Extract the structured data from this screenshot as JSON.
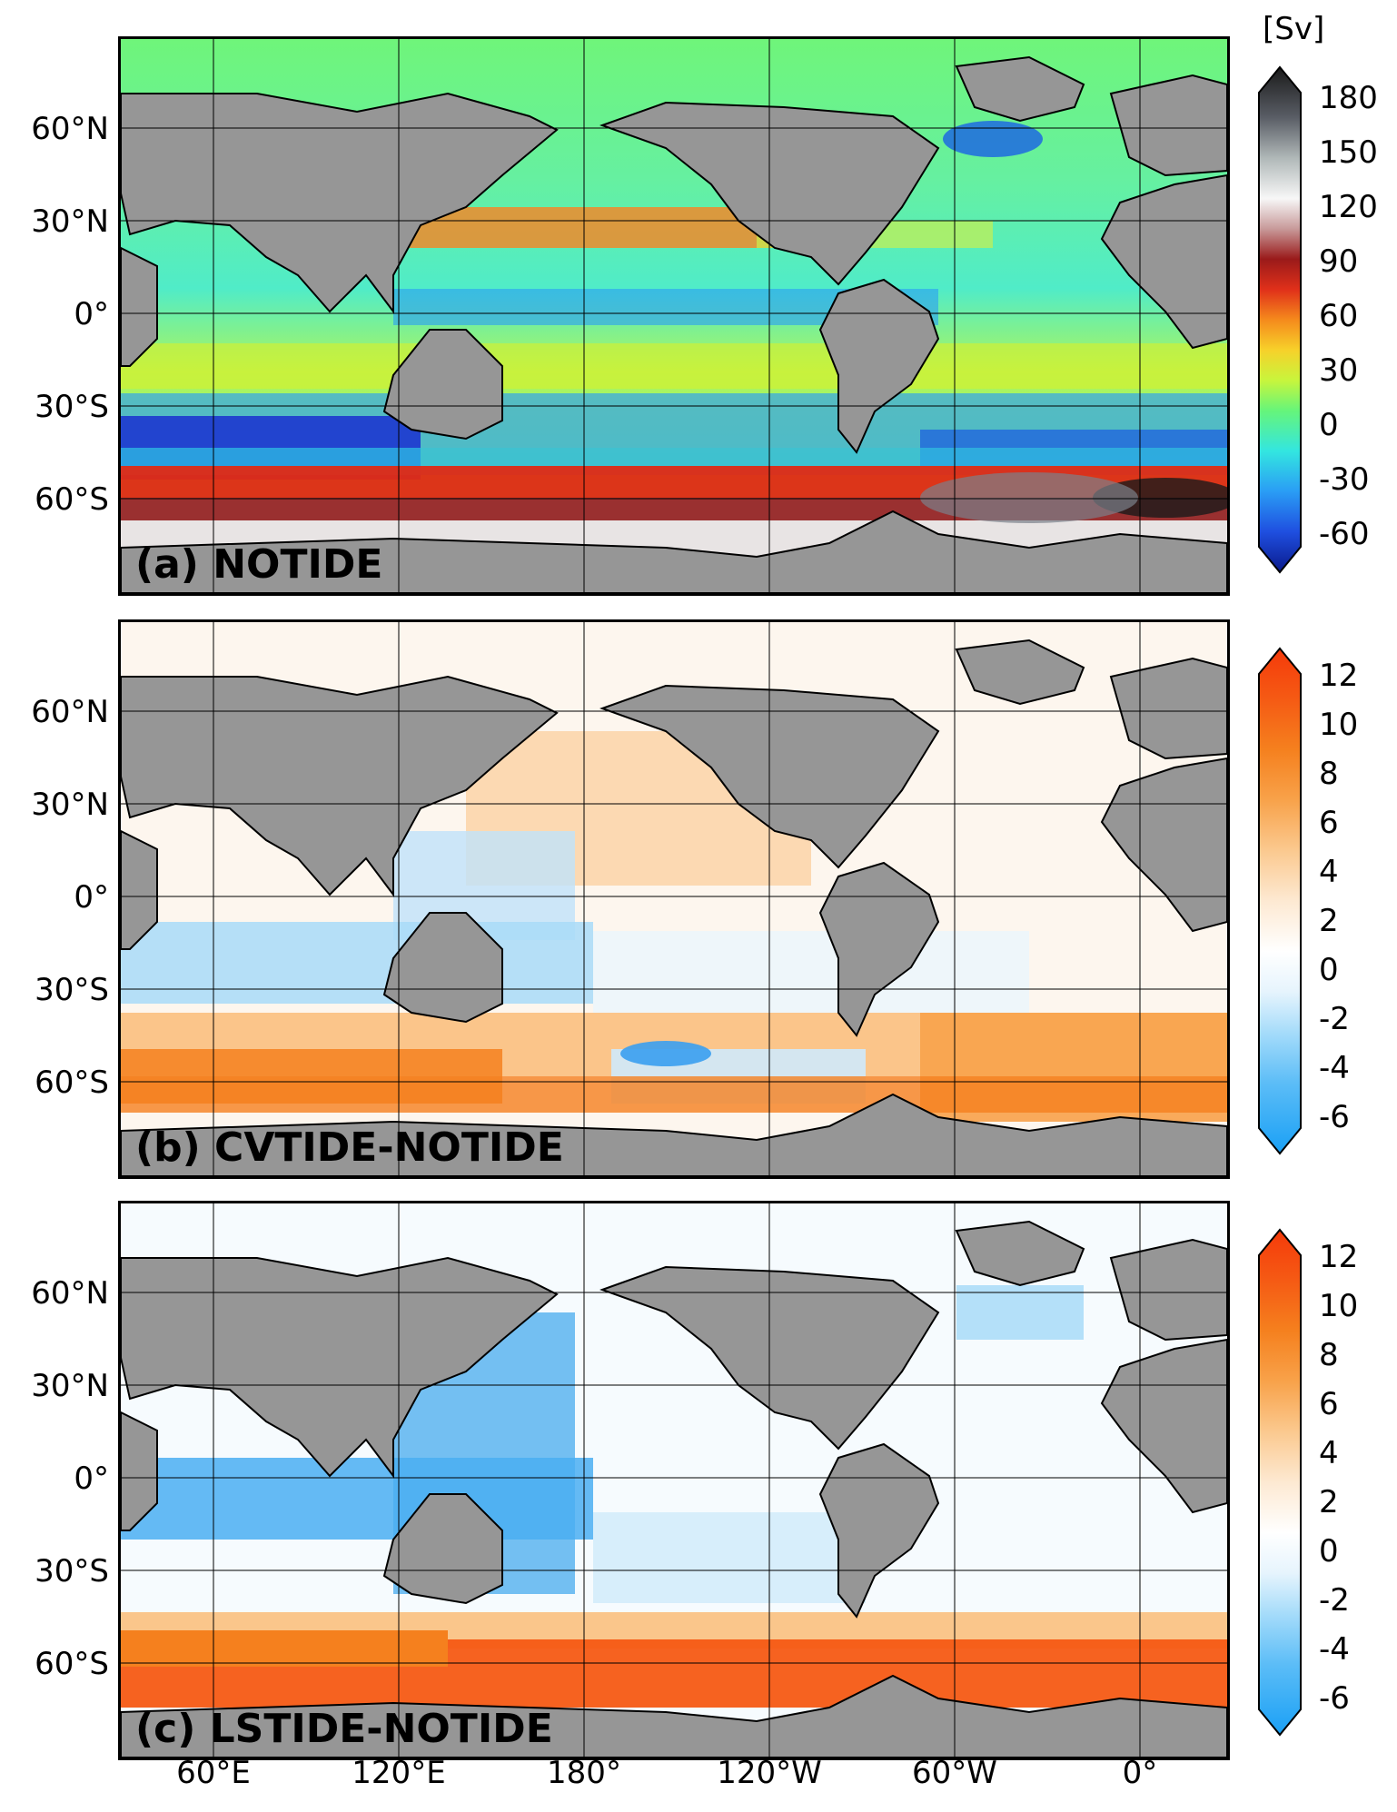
{
  "unit_label": "[Sv]",
  "lat_labels": [
    "60°N",
    "30°N",
    "0°",
    "30°S",
    "60°S"
  ],
  "lon_labels": [
    "60°E",
    "120°E",
    "180°",
    "120°W",
    "60°W",
    "0°"
  ],
  "panels": [
    {
      "label": "(a) NOTIDE",
      "colorbar_ticks": [
        "180",
        "150",
        "120",
        "90",
        "60",
        "30",
        "0",
        "-30",
        "-60"
      ],
      "colormap": [
        "#0a1a8c",
        "#1f4fe0",
        "#2a9df5",
        "#33e6e0",
        "#66f57a",
        "#c8f53c",
        "#f7d12a",
        "#f58a1c",
        "#e0301a",
        "#9a1a1a",
        "#c89a9a",
        "#f7f7f7",
        "#b0b8b8",
        "#5a5e66",
        "#1a1a1a"
      ]
    },
    {
      "label": "(b) CVTIDE-NOTIDE",
      "colorbar_ticks": [
        "12",
        "10",
        "8",
        "6",
        "4",
        "2",
        "0",
        "-2",
        "-4",
        "-6"
      ],
      "colormap": [
        "#1aa0f5",
        "#5cbdf7",
        "#a6dcfa",
        "#e6f4fd",
        "#ffffff",
        "#fde9d2",
        "#fbc98f",
        "#f8a24a",
        "#f5801e",
        "#f55a14",
        "#f53a0a"
      ]
    },
    {
      "label": "(c) LSTIDE-NOTIDE",
      "colorbar_ticks": [
        "12",
        "10",
        "8",
        "6",
        "4",
        "2",
        "0",
        "-2",
        "-4",
        "-6"
      ],
      "colormap": [
        "#1aa0f5",
        "#5cbdf7",
        "#a6dcfa",
        "#e6f4fd",
        "#ffffff",
        "#fde9d2",
        "#fbc98f",
        "#f8a24a",
        "#f5801e",
        "#f55a14",
        "#f53a0a"
      ]
    }
  ],
  "colors": {
    "land": "#969696",
    "coast": "#000000",
    "grid": "#000000"
  }
}
